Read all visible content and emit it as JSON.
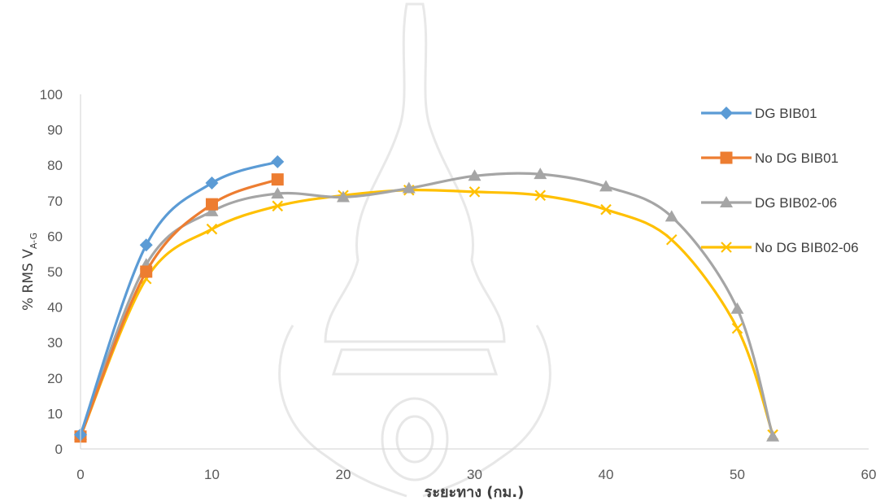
{
  "chart_data": {
    "type": "line",
    "title": "",
    "xlabel": "ระยะทาง (กม.)",
    "ylabel_main": "% RMS V",
    "ylabel_sub": "A-G",
    "xlim": [
      0,
      60
    ],
    "ylim": [
      0,
      100
    ],
    "xticks": [
      0,
      10,
      20,
      30,
      40,
      50,
      60
    ],
    "yticks": [
      0,
      10,
      20,
      30,
      40,
      50,
      60,
      70,
      80,
      90,
      100
    ],
    "grid": false,
    "legend_position": "right",
    "series": [
      {
        "name": "DG BIB01",
        "color": "#5B9BD5",
        "marker": "diamond",
        "x": [
          0,
          5,
          10,
          15
        ],
        "y": [
          4,
          57.5,
          75,
          81
        ]
      },
      {
        "name": "No DG BIB01",
        "color": "#ED7D31",
        "marker": "square",
        "x": [
          0,
          5,
          10,
          15
        ],
        "y": [
          3.5,
          50,
          69,
          76
        ]
      },
      {
        "name": "DG BIB02-06",
        "color": "#A5A5A5",
        "marker": "triangle",
        "x": [
          0,
          5,
          10,
          15,
          20,
          25,
          30,
          35,
          40,
          45,
          50,
          52.7
        ],
        "y": [
          4,
          52,
          67,
          72,
          71,
          73.5,
          77,
          77.5,
          74,
          65.5,
          39.5,
          3.5
        ]
      },
      {
        "name": "No DG BIB02-06",
        "color": "#FFC000",
        "marker": "x",
        "x": [
          0,
          5,
          10,
          15,
          20,
          25,
          30,
          35,
          40,
          45,
          50,
          52.7
        ],
        "y": [
          3.5,
          48,
          62,
          68.5,
          71.5,
          73,
          72.5,
          71.5,
          67.5,
          59,
          34,
          4
        ]
      }
    ]
  }
}
